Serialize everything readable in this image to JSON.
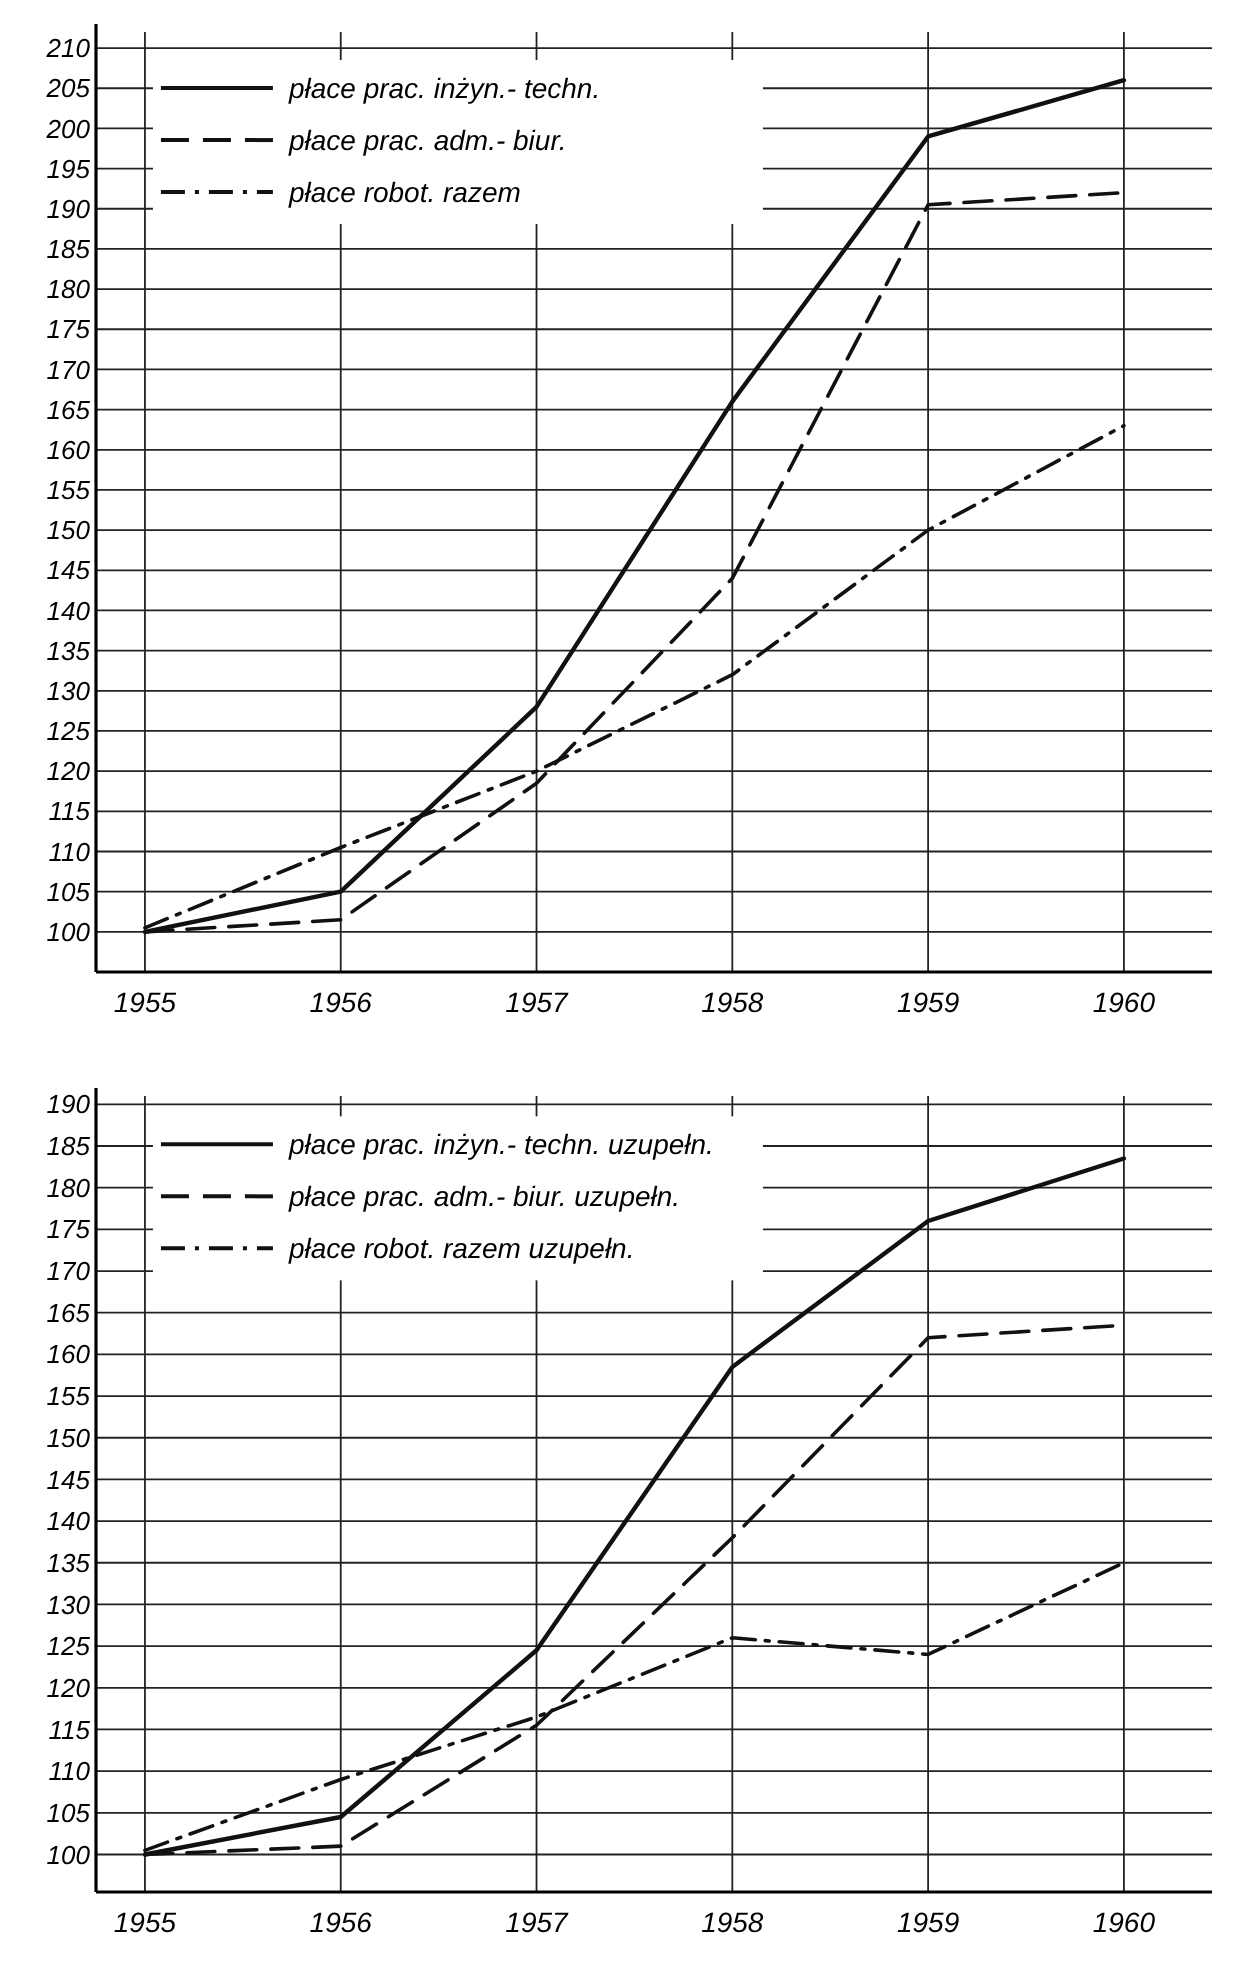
{
  "chart_data": [
    {
      "type": "line",
      "x": [
        1955,
        1956,
        1957,
        1958,
        1959,
        1960
      ],
      "xlim": [
        1954.75,
        1960.45
      ],
      "xticks": [
        1955,
        1956,
        1957,
        1958,
        1959,
        1960
      ],
      "ylim": [
        95,
        212
      ],
      "yticks": [
        100,
        105,
        110,
        115,
        120,
        125,
        130,
        135,
        140,
        145,
        150,
        155,
        160,
        165,
        170,
        175,
        180,
        185,
        190,
        195,
        200,
        205,
        210
      ],
      "grid": true,
      "legend": "top left",
      "marker": "none",
      "series": [
        {
          "name": "płace prac. inżyn.- techn.",
          "color": "#111111",
          "line_style": "solid",
          "values": [
            100,
            105,
            128,
            166,
            199,
            206
          ]
        },
        {
          "name": "płace prac. adm.- biur.",
          "color": "#111111",
          "line_style": "dashed",
          "values": [
            100,
            101.5,
            118.5,
            144,
            190.5,
            192
          ]
        },
        {
          "name": "płace robot. razem",
          "color": "#111111",
          "line_style": "dashdot",
          "values": [
            100.5,
            110.5,
            120,
            132,
            150,
            163
          ]
        }
      ]
    },
    {
      "type": "line",
      "x": [
        1955,
        1956,
        1957,
        1958,
        1959,
        1960
      ],
      "xlim": [
        1954.75,
        1960.45
      ],
      "xticks": [
        1955,
        1956,
        1957,
        1958,
        1959,
        1960
      ],
      "ylim": [
        95.5,
        191
      ],
      "yticks": [
        100,
        105,
        110,
        115,
        120,
        125,
        130,
        135,
        140,
        145,
        150,
        155,
        160,
        165,
        170,
        175,
        180,
        185,
        190
      ],
      "grid": true,
      "legend": "top left",
      "marker": "none",
      "series": [
        {
          "name": "płace prac. inżyn.- techn. uzupełn.",
          "color": "#111111",
          "line_style": "solid",
          "values": [
            100,
            104.5,
            124.5,
            158.5,
            176,
            183.5
          ]
        },
        {
          "name": "płace prac. adm.- biur. uzupełn.",
          "color": "#111111",
          "line_style": "dashed",
          "values": [
            100,
            101,
            115.5,
            138,
            162,
            163.5
          ]
        },
        {
          "name": "płace robot. razem uzupełn.",
          "color": "#111111",
          "line_style": "dashdot",
          "values": [
            100.5,
            109,
            116.5,
            126,
            124,
            135
          ]
        }
      ]
    }
  ]
}
